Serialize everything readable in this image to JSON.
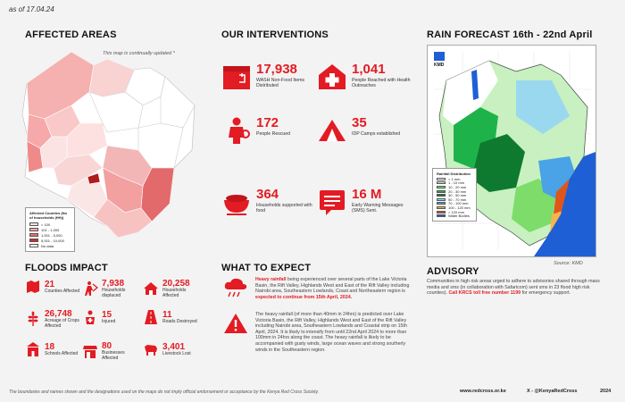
{
  "as_of": "as of 17.04.24",
  "affected_areas": {
    "title": "AFFECTED AREAS",
    "note": "This map is continually updated *",
    "legend": {
      "title": "Affected Counties (No of households (HH))",
      "items": [
        "< 100",
        "101 - 1,000",
        "1,001 - 5,000",
        "5,001 - 10,000",
        "No data"
      ],
      "colors": [
        "#fde0e0",
        "#f7a8a8",
        "#ef6b6b",
        "#d62828",
        "#ffffff"
      ]
    }
  },
  "interventions": {
    "title": "OUR INTERVENTIONS",
    "items": [
      {
        "value": "17,938",
        "label": "WASH Non-Food Items Distributed",
        "icon": "box-icon"
      },
      {
        "value": "1,041",
        "label": "People Reached with Health Outreaches",
        "icon": "medical-cross-icon"
      },
      {
        "value": "172",
        "label": "People Rescued",
        "icon": "rescuer-icon"
      },
      {
        "value": "35",
        "label": "IDP Camps established",
        "icon": "tent-icon"
      },
      {
        "value": "364",
        "label": "Households supported with food",
        "icon": "food-bowl-icon"
      },
      {
        "value": "16 M",
        "label": "Early Warning Messages (SMS) Sent.",
        "icon": "message-icon"
      }
    ]
  },
  "rain_forecast": {
    "title": "RAIN FORECAST 16th - 22nd April",
    "source": "Source: KMD",
    "agency": "KMD",
    "legend_title": "Rainfall Distribution",
    "legend_items": [
      "< 1 mm",
      "1 - 10 mm",
      "10 - 20 mm",
      "20 - 30 mm",
      "30 - 50 mm",
      "50 - 70 mm",
      "70 - 100 mm",
      "100 - 120 mm",
      "> 120 mm",
      "Water Bodies"
    ],
    "legend_colors": [
      "#ffffff",
      "#c8f0c0",
      "#7ddc6a",
      "#1eb34a",
      "#0e7a30",
      "#9ad8f0",
      "#4aa3e6",
      "#f7b44a",
      "#e0561a",
      "#1e5fd6"
    ]
  },
  "floods_impact": {
    "title": "FLOODS IMPACT",
    "items": [
      {
        "value": "21",
        "label": "Counties Affected",
        "icon": "map-icon"
      },
      {
        "value": "7,938",
        "label": "Households displaced",
        "icon": "displaced-person-icon"
      },
      {
        "value": "20,258",
        "label": "Households Affected",
        "icon": "house-icon"
      },
      {
        "value": "26,748",
        "label": "Acreage of Crops Affected",
        "icon": "crops-icon"
      },
      {
        "value": "15",
        "label": "Injured",
        "icon": "injured-icon"
      },
      {
        "value": "11",
        "label": "Roads Destroyed",
        "icon": "road-icon"
      },
      {
        "value": "18",
        "label": "Schools Affected",
        "icon": "school-icon"
      },
      {
        "value": "80",
        "label": "Businesses Affected",
        "icon": "shop-icon"
      },
      {
        "value": "3,401",
        "label": "Livestock Lost",
        "icon": "livestock-icon"
      }
    ]
  },
  "what_to_expect": {
    "title": "WHAT TO EXPECT",
    "p1_lead": "Heavy rainfall",
    "p1_body": " being experienced over several parts of the Lake Victoria Basin, the Rift Valley, Highlands West and East of the Rift Valley including Nairobi area, Southeastern Lowlands, Coast and Northeastern region is ",
    "p1_tail": "expected to continue from 15th April, 2024.",
    "p2": "The heavy rainfall (of more than 40mm in 24hrs) is predicted over Lake Victoria Basin, the Rift Valley, Highlands West and East of the Rift Valley including Nairobi area, Southeastern Lowlands and Coastal strip on 15th April, 2024. It is likely to intensify from until 22nd April 2024 to more than 100mm in 24hrs along the coast. The heavy rainfall is likely to be accompanied with gusty winds, large ocean waves and strong southerly winds in the Southeastern region."
  },
  "advisory": {
    "title": "ADVISORY",
    "body": "Communities in high risk areas urged to adhere to advisories shared through mass media and sms (in collaboration with Safaricom) sent sms in 23 flood high risk counties). ",
    "hotline": "Call KRCS toll free number 1199",
    "tail": " for emergency support."
  },
  "footer": {
    "disclaimer": "The boundaries and names shown and the designations used on the maps do not imply official endorsement or acceptance by the Kenya Red Cross Society.",
    "website": "www.redcross.or.ke",
    "social": "X - @KenyaRedCross",
    "year": "2024"
  },
  "colors": {
    "accent": "#e31b23",
    "background": "#f3f3f3"
  }
}
